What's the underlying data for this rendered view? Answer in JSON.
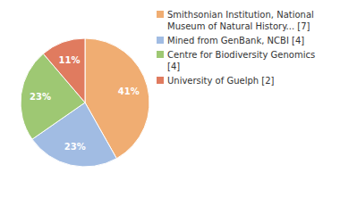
{
  "chart_data": {
    "type": "pie",
    "categories": [
      "Smithsonian Institution, National Museum of Natural History... [7]",
      "Mined from GenBank, NCBI [4]",
      "Centre for Biodiversity Genomics [4]",
      "University of Guelph [2]"
    ],
    "values": [
      41,
      23,
      23,
      11
    ],
    "value_labels": [
      "41%",
      "23%",
      "23%",
      "11%"
    ],
    "colors": [
      "#f0ad72",
      "#a1bce3",
      "#9ec873",
      "#e07b5f"
    ],
    "data_labels": true,
    "legend": "upper right"
  }
}
